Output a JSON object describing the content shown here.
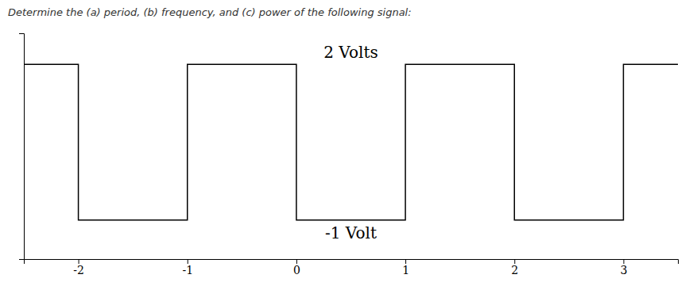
{
  "chart_data": {
    "type": "line",
    "title": "Determine the (a) period, (b) frequency, and (c) power of the following signal:",
    "x": [
      -2.5,
      -2,
      -2,
      -1,
      -1,
      0,
      0,
      1,
      1,
      2,
      2,
      3,
      3,
      3.5
    ],
    "values": [
      2,
      2,
      -1,
      -1,
      2,
      2,
      -1,
      -1,
      2,
      2,
      -1,
      -1,
      2,
      2
    ],
    "color": "#000000",
    "xlim": [
      -2.5,
      3.5
    ],
    "ylim": [
      -1.75,
      2.6
    ],
    "xticks": [
      -2,
      -1,
      0,
      1,
      2,
      3
    ],
    "tick_labels": "x",
    "grid": false,
    "annotations": [
      "2 Volts",
      "-1 Volt"
    ]
  }
}
